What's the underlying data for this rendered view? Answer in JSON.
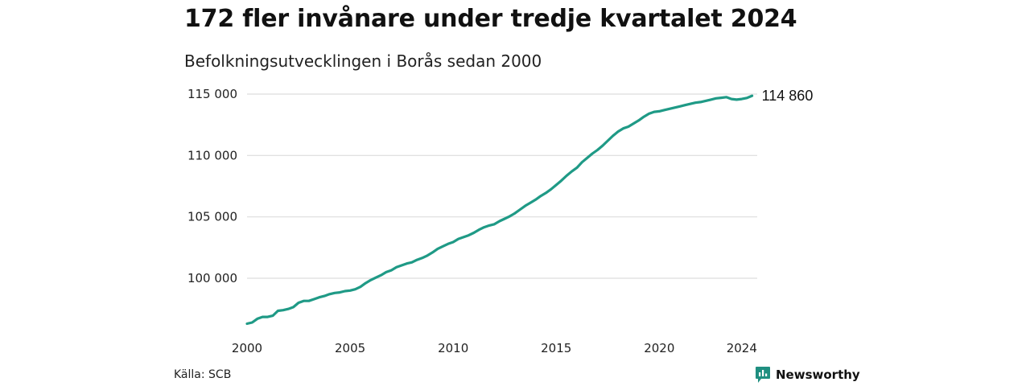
{
  "title": "172 fler invånare under tredje kvartalet 2024",
  "subtitle": "Befolkningsutvecklingen i Borås sedan 2000",
  "source": "Källa: SCB",
  "brand": {
    "name": "Newsworthy",
    "icon": "newsworthy-logo-icon",
    "color": "#1f8f80"
  },
  "colors": {
    "line": "#1f9a86",
    "grid": "#dddddd"
  },
  "chart_data": {
    "type": "line",
    "title": "172 fler invånare under tredje kvartalet 2024",
    "subtitle": "Befolkningsutvecklingen i Borås sedan 2000",
    "xlabel": "",
    "ylabel": "",
    "xlim": [
      2000,
      2024.75
    ],
    "ylim": [
      96000,
      115000
    ],
    "x_ticks": [
      2000,
      2005,
      2010,
      2015,
      2020,
      2024
    ],
    "x_tick_labels": [
      "2000",
      "2005",
      "2010",
      "2015",
      "2020",
      "2024"
    ],
    "y_ticks": [
      100000,
      105000,
      110000,
      115000
    ],
    "y_tick_labels": [
      "100 000",
      "105 000",
      "110 000",
      "115 000"
    ],
    "grid": true,
    "legend": "none",
    "end_label": "114 860",
    "series": [
      {
        "name": "",
        "points": [
          [
            2000.0,
            96300
          ],
          [
            2000.25,
            96400
          ],
          [
            2000.5,
            96700
          ],
          [
            2000.75,
            96850
          ],
          [
            2001.0,
            96850
          ],
          [
            2001.25,
            96950
          ],
          [
            2001.5,
            97350
          ],
          [
            2001.75,
            97400
          ],
          [
            2002.0,
            97500
          ],
          [
            2002.25,
            97650
          ],
          [
            2002.5,
            98000
          ],
          [
            2002.75,
            98150
          ],
          [
            2003.0,
            98150
          ],
          [
            2003.25,
            98300
          ],
          [
            2003.5,
            98450
          ],
          [
            2003.75,
            98550
          ],
          [
            2004.0,
            98700
          ],
          [
            2004.25,
            98800
          ],
          [
            2004.5,
            98850
          ],
          [
            2004.75,
            98950
          ],
          [
            2005.0,
            99000
          ],
          [
            2005.25,
            99100
          ],
          [
            2005.5,
            99300
          ],
          [
            2005.75,
            99600
          ],
          [
            2006.0,
            99850
          ],
          [
            2006.25,
            100050
          ],
          [
            2006.5,
            100250
          ],
          [
            2006.75,
            100500
          ],
          [
            2007.0,
            100650
          ],
          [
            2007.25,
            100900
          ],
          [
            2007.5,
            101050
          ],
          [
            2007.75,
            101200
          ],
          [
            2008.0,
            101300
          ],
          [
            2008.25,
            101500
          ],
          [
            2008.5,
            101650
          ],
          [
            2008.75,
            101850
          ],
          [
            2009.0,
            102100
          ],
          [
            2009.25,
            102400
          ],
          [
            2009.5,
            102600
          ],
          [
            2009.75,
            102800
          ],
          [
            2010.0,
            102950
          ],
          [
            2010.25,
            103200
          ],
          [
            2010.5,
            103350
          ],
          [
            2010.75,
            103500
          ],
          [
            2011.0,
            103700
          ],
          [
            2011.25,
            103950
          ],
          [
            2011.5,
            104150
          ],
          [
            2011.75,
            104300
          ],
          [
            2012.0,
            104400
          ],
          [
            2012.25,
            104650
          ],
          [
            2012.5,
            104850
          ],
          [
            2012.75,
            105050
          ],
          [
            2013.0,
            105300
          ],
          [
            2013.25,
            105600
          ],
          [
            2013.5,
            105900
          ],
          [
            2013.75,
            106150
          ],
          [
            2014.0,
            106400
          ],
          [
            2014.25,
            106700
          ],
          [
            2014.5,
            106950
          ],
          [
            2014.75,
            107250
          ],
          [
            2015.0,
            107600
          ],
          [
            2015.25,
            107950
          ],
          [
            2015.5,
            108350
          ],
          [
            2015.75,
            108700
          ],
          [
            2016.0,
            109000
          ],
          [
            2016.25,
            109450
          ],
          [
            2016.5,
            109800
          ],
          [
            2016.75,
            110150
          ],
          [
            2017.0,
            110450
          ],
          [
            2017.25,
            110800
          ],
          [
            2017.5,
            111200
          ],
          [
            2017.75,
            111600
          ],
          [
            2018.0,
            111950
          ],
          [
            2018.25,
            112200
          ],
          [
            2018.5,
            112350
          ],
          [
            2018.75,
            112600
          ],
          [
            2019.0,
            112850
          ],
          [
            2019.25,
            113150
          ],
          [
            2019.5,
            113400
          ],
          [
            2019.75,
            113550
          ],
          [
            2020.0,
            113600
          ],
          [
            2020.25,
            113700
          ],
          [
            2020.5,
            113800
          ],
          [
            2020.75,
            113900
          ],
          [
            2021.0,
            114000
          ],
          [
            2021.25,
            114100
          ],
          [
            2021.5,
            114200
          ],
          [
            2021.75,
            114300
          ],
          [
            2022.0,
            114350
          ],
          [
            2022.25,
            114450
          ],
          [
            2022.5,
            114550
          ],
          [
            2022.75,
            114650
          ],
          [
            2023.0,
            114700
          ],
          [
            2023.25,
            114750
          ],
          [
            2023.5,
            114600
          ],
          [
            2023.75,
            114550
          ],
          [
            2024.0,
            114600
          ],
          [
            2024.25,
            114688
          ],
          [
            2024.5,
            114860
          ]
        ]
      }
    ]
  }
}
